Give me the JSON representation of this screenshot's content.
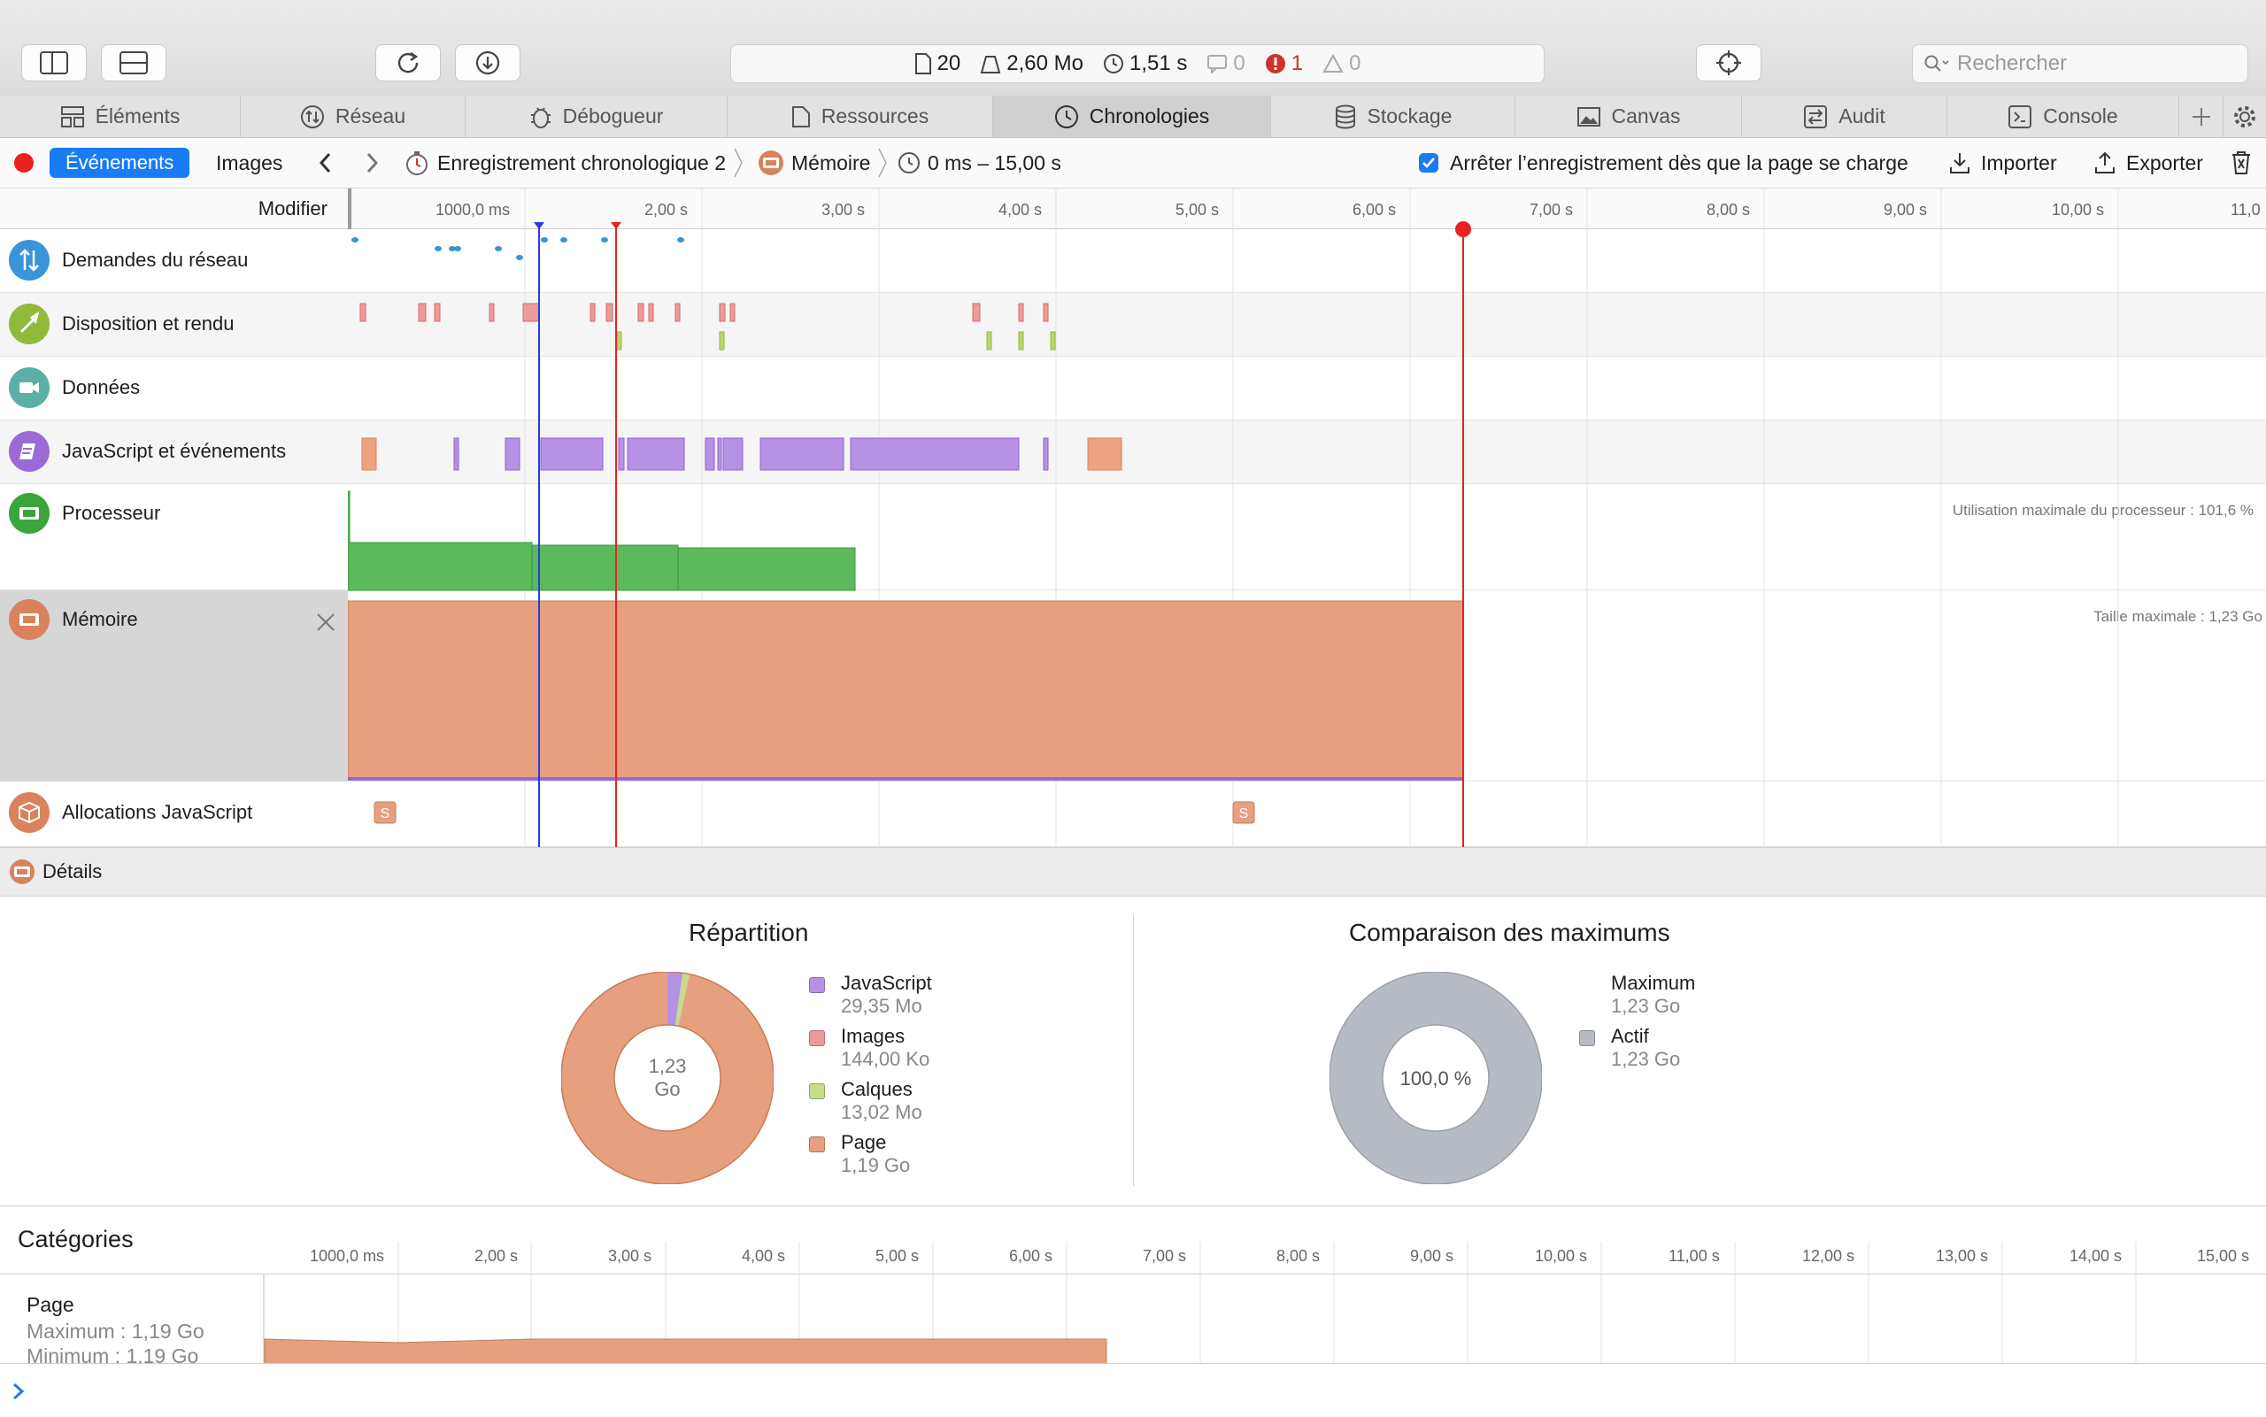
{
  "toolbar": {
    "resources": "20",
    "size": "2,60 Mo",
    "time": "1,51 s",
    "logs": "0",
    "errors": "1",
    "warnings": "0",
    "search_placeholder": "Rechercher"
  },
  "tabs": [
    {
      "label": "Éléments",
      "icon": "elements-icon"
    },
    {
      "label": "Réseau",
      "icon": "network-icon"
    },
    {
      "label": "Débogueur",
      "icon": "debugger-icon"
    },
    {
      "label": "Ressources",
      "icon": "resources-icon"
    },
    {
      "label": "Chronologies",
      "icon": "timelines-icon",
      "active": true
    },
    {
      "label": "Stockage",
      "icon": "storage-icon"
    },
    {
      "label": "Canvas",
      "icon": "canvas-icon"
    },
    {
      "label": "Audit",
      "icon": "audit-icon"
    },
    {
      "label": "Console",
      "icon": "console-icon"
    }
  ],
  "navbar": {
    "events": "Événements",
    "images": "Images",
    "recording": "Enregistrement chronologique 2",
    "memory": "Mémoire",
    "range": "0 ms – 15,00 s",
    "stop_label": "Arrêter l’enregistrement dès que la page se charge",
    "import": "Importer",
    "export": "Exporter"
  },
  "timeline": {
    "edit": "Modifier",
    "ticks": [
      "1000,0 ms",
      "2,00 s",
      "3,00 s",
      "4,00 s",
      "5,00 s",
      "6,00 s",
      "7,00 s",
      "8,00 s",
      "9,00 s",
      "10,00 s",
      "11,0"
    ],
    "rows": [
      {
        "label": "Demandes du réseau",
        "color": "#3a94d8"
      },
      {
        "label": "Disposition et rendu",
        "color": "#8fba3b"
      },
      {
        "label": "Données",
        "color": "#5ab0a4"
      },
      {
        "label": "JavaScript et événements",
        "color": "#9b6ad6"
      },
      {
        "label": "Processeur",
        "color": "#3aa53a"
      },
      {
        "label": "Mémoire",
        "color": "#d9825b"
      },
      {
        "label": "Allocations JavaScript",
        "color": "#d9825b"
      }
    ],
    "cpu_note": "Utilisation maximale du processeur : 101,6 %",
    "memory_note": "Taille maximale : 1,23 Go",
    "snapshot_marker": "S"
  },
  "details": {
    "label": "Détails",
    "breakdown_title": "Répartition",
    "breakdown_center_1": "1,23",
    "breakdown_center_2": "Go",
    "legend": [
      {
        "name": "JavaScript",
        "value": "29,35 Mo",
        "color": "#b592e6"
      },
      {
        "name": "Images",
        "value": "144,00 Ko",
        "color": "#ee9a9a"
      },
      {
        "name": "Calques",
        "value": "13,02 Mo",
        "color": "#c6dc8a"
      },
      {
        "name": "Page",
        "value": "1,19 Go",
        "color": "#e6a07f"
      }
    ],
    "comparison_title": "Comparaison des maximums",
    "comparison_center": "100,0 %",
    "comparison_legend": [
      {
        "name": "Maximum",
        "value": "1,23 Go"
      },
      {
        "name": "Actif",
        "value": "1,23 Go",
        "color": "#b7bcc4"
      }
    ]
  },
  "categories": {
    "title": "Catégories",
    "ticks": [
      "1000,0 ms",
      "2,00 s",
      "3,00 s",
      "4,00 s",
      "5,00 s",
      "6,00 s",
      "7,00 s",
      "8,00 s",
      "9,00 s",
      "10,00 s",
      "11,00 s",
      "12,00 s",
      "13,00 s",
      "14,00 s",
      "15,00 s"
    ],
    "page_label": "Page",
    "page_max": "Maximum : 1,19 Go",
    "page_min": "Minimum : 1,19 Go"
  }
}
